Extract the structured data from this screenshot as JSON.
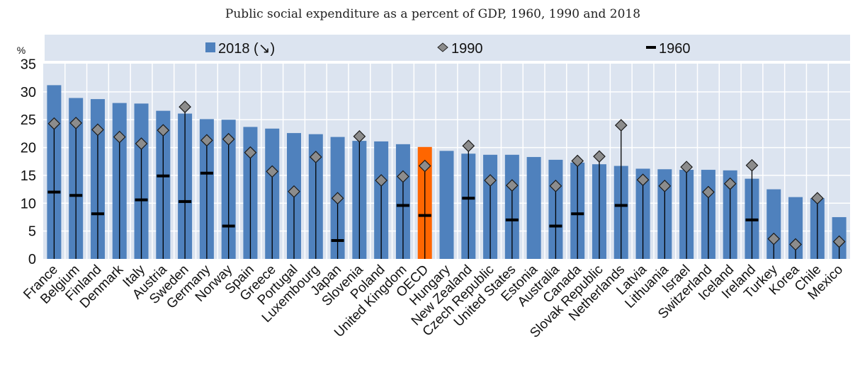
{
  "chart_data": {
    "type": "bar",
    "title": "Public social expenditure as a percent of GDP, 1960, 1990 and 2018",
    "xlabel": "",
    "ylabel": "%",
    "ylim": [
      0,
      35
    ],
    "yticks": [
      0,
      5,
      10,
      15,
      20,
      25,
      30,
      35
    ],
    "grid": true,
    "legend_position": "top",
    "colors": {
      "bar": "#4F81BD",
      "highlight_bar": "#FF6600",
      "diamond": "#8C8C8C",
      "marker_1960": "#000000",
      "plot_background": "#DCE4F0",
      "grid": "#FFFFFF"
    },
    "highlight_category": "OECD",
    "legend": [
      {
        "label": "2018 (↘)",
        "marker": "square",
        "series": "2018"
      },
      {
        "label": "1990",
        "marker": "diamond",
        "series": "1990"
      },
      {
        "label": "1960",
        "marker": "dash",
        "series": "1960"
      }
    ],
    "categories": [
      "France",
      "Belgium",
      "Finland",
      "Denmark",
      "Italy",
      "Austria",
      "Sweden",
      "Germany",
      "Norway",
      "Spain",
      "Greece",
      "Portugal",
      "Luxembourg",
      "Japan",
      "Slovenia",
      "Poland",
      "United Kingdom",
      "OECD",
      "Hungary",
      "New Zealand",
      "Czech Republic",
      "United States",
      "Estonia",
      "Australia",
      "Canada",
      "Slovak Republic",
      "Netherlands",
      "Latvia",
      "Lithuania",
      "Israel",
      "Switzerland",
      "Iceland",
      "Ireland",
      "Turkey",
      "Korea",
      "Chile",
      "Mexico"
    ],
    "series": [
      {
        "name": "2018",
        "type": "bar",
        "values": [
          31.2,
          28.9,
          28.7,
          28.0,
          27.9,
          26.6,
          26.1,
          25.1,
          25.0,
          23.7,
          23.4,
          22.6,
          22.4,
          21.9,
          21.2,
          21.1,
          20.6,
          20.1,
          19.4,
          18.9,
          18.7,
          18.7,
          18.3,
          17.8,
          17.3,
          17.0,
          16.7,
          16.2,
          16.1,
          16.0,
          16.0,
          15.9,
          14.4,
          12.5,
          11.1,
          10.9,
          7.5
        ]
      },
      {
        "name": "1990",
        "type": "diamond",
        "values": [
          24.3,
          24.4,
          23.2,
          21.9,
          20.7,
          23.1,
          27.3,
          21.3,
          21.5,
          19.1,
          15.7,
          12.1,
          18.3,
          10.9,
          22.0,
          14.1,
          14.8,
          16.7,
          null,
          20.3,
          14.1,
          13.2,
          null,
          13.1,
          17.6,
          18.4,
          24.0,
          14.2,
          13.1,
          16.5,
          12.0,
          13.5,
          16.8,
          3.6,
          2.6,
          10.9,
          3.1
        ]
      },
      {
        "name": "1960",
        "type": "dash",
        "values": [
          12.0,
          11.4,
          8.1,
          null,
          10.6,
          14.9,
          10.3,
          15.4,
          5.9,
          null,
          null,
          null,
          null,
          3.3,
          null,
          null,
          9.6,
          7.8,
          null,
          10.9,
          null,
          7.0,
          null,
          5.9,
          8.1,
          null,
          9.6,
          null,
          null,
          null,
          null,
          null,
          7.0,
          null,
          null,
          null,
          null
        ]
      }
    ]
  }
}
